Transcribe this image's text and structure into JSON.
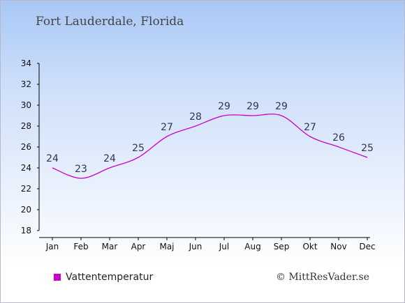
{
  "header": {
    "title": "Fort Lauderdale, Florida"
  },
  "chart_data": {
    "type": "line",
    "title": "Fort Lauderdale, Florida",
    "categories": [
      "Jan",
      "Feb",
      "Mar",
      "Apr",
      "Maj",
      "Jun",
      "Jul",
      "Aug",
      "Sep",
      "Okt",
      "Nov",
      "Dec"
    ],
    "series": [
      {
        "name": "Vattentemperatur",
        "values": [
          24,
          23,
          24,
          25,
          27,
          28,
          29,
          29,
          29,
          27,
          26,
          25
        ],
        "color": "#cc00cc"
      }
    ],
    "ylim": [
      18,
      34
    ],
    "yticks": [
      18,
      20,
      22,
      24,
      26,
      28,
      30,
      32,
      34
    ],
    "grid": false,
    "legend": "bottom-left"
  },
  "legend": {
    "label": "Vattentemperatur",
    "color": "#cc00cc"
  },
  "footer": {
    "copyright": "© MittResVader.se"
  }
}
